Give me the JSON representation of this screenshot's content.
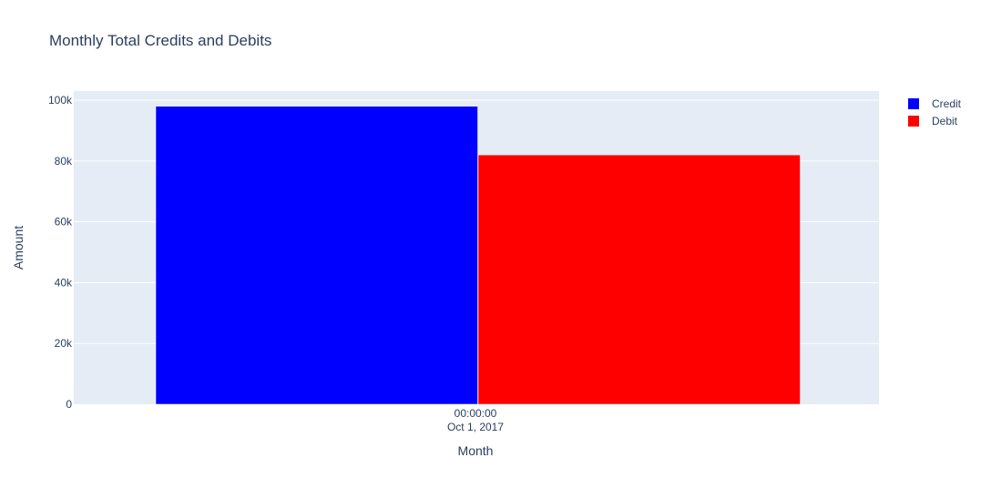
{
  "chart_data": {
    "type": "bar",
    "title": "Monthly Total Credits and Debits",
    "xlabel": "Month",
    "ylabel": "Amount",
    "categories": [
      "2017-10-01"
    ],
    "x_tick_label": {
      "line1": "00:00:00",
      "line2": "Oct 1, 2017"
    },
    "ylim": [
      0,
      103000
    ],
    "y_ticks": [
      0,
      20000,
      40000,
      60000,
      80000,
      100000
    ],
    "y_tick_labels": [
      "0",
      "20k",
      "40k",
      "60k",
      "80k",
      "100k"
    ],
    "grid": true,
    "legend_position": "top-right",
    "series": [
      {
        "name": "Credit",
        "color": "#0000ff",
        "values": [
          98000
        ]
      },
      {
        "name": "Debit",
        "color": "#ff0000",
        "values": [
          82000
        ]
      }
    ],
    "plot_background": "#e5ecf6"
  }
}
